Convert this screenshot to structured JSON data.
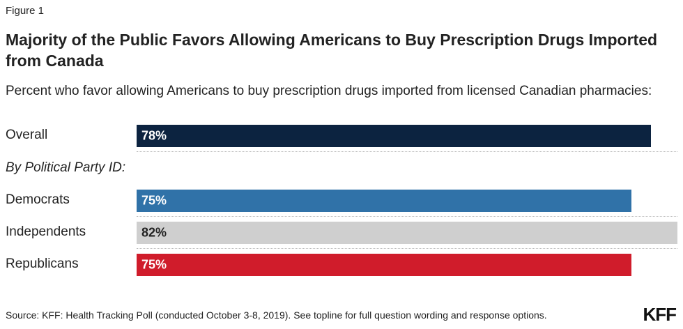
{
  "figure_label": "Figure 1",
  "title": "Majority of the Public Favors Allowing Americans to Buy Prescription Drugs Imported from Canada",
  "subtitle": "Percent who favor allowing Americans to buy prescription drugs imported from licensed Canadian pharmacies:",
  "source": "Source: KFF: Health Tracking Poll (conducted October 3-8, 2019). See topline for full question wording and response options.",
  "logo_text": "KFF",
  "chart_data": {
    "type": "bar",
    "orientation": "horizontal",
    "xlim": [
      0,
      82
    ],
    "group_label": "By Political Party ID:",
    "categories": [
      "Overall",
      "Democrats",
      "Independents",
      "Republicans"
    ],
    "values": [
      78,
      75,
      82,
      75
    ],
    "value_labels": [
      "78%",
      "75%",
      "82%",
      "75%"
    ],
    "colors": [
      "#0c2340",
      "#3072a8",
      "#cfcfcf",
      "#d01c2b"
    ],
    "label_colors": [
      "#ffffff",
      "#ffffff",
      "#222222",
      "#ffffff"
    ]
  }
}
